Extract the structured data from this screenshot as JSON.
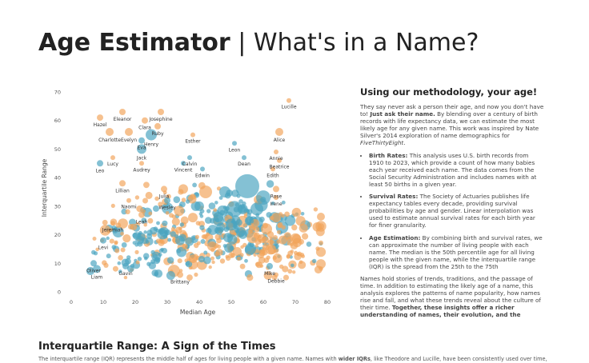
{
  "header": {
    "title_bold": "Age Estimator",
    "title_sep": "|",
    "title_light": "What's in a Name?"
  },
  "chart_data": {
    "type": "scatter",
    "title": "",
    "xlabel": "Median Age",
    "ylabel": "Interquartile Range",
    "xlim": [
      0,
      80
    ],
    "ylim": [
      0,
      70
    ],
    "xticks": [
      "0",
      "10",
      "20",
      "30",
      "40",
      "50",
      "60",
      "70",
      "80"
    ],
    "yticks": [
      "0",
      "10",
      "20",
      "30",
      "40",
      "50",
      "60",
      "70"
    ],
    "grid": false,
    "colors": {
      "female": "#f2a45a",
      "male": "#4aa3c0"
    },
    "labeled_points": [
      {
        "name": "Eleanor",
        "x": 16,
        "y": 63,
        "g": "f",
        "s": 4
      },
      {
        "name": "Josephine",
        "x": 28,
        "y": 63,
        "g": "f",
        "s": 4
      },
      {
        "name": "Lucille",
        "x": 68,
        "y": 67,
        "g": "f",
        "s": 3
      },
      {
        "name": "Hazel",
        "x": 9,
        "y": 61,
        "g": "f",
        "s": 4
      },
      {
        "name": "Clara",
        "x": 23,
        "y": 60,
        "g": "f",
        "s": 4
      },
      {
        "name": "Ruby",
        "x": 27,
        "y": 58,
        "g": "f",
        "s": 4
      },
      {
        "name": "Charlotte",
        "x": 12,
        "y": 56,
        "g": "f",
        "s": 5
      },
      {
        "name": "Evelyn",
        "x": 18,
        "y": 56,
        "g": "f",
        "s": 5
      },
      {
        "name": "Henry",
        "x": 25,
        "y": 55,
        "g": "m",
        "s": 7
      },
      {
        "name": "Alice",
        "x": 65,
        "y": 56,
        "g": "f",
        "s": 5
      },
      {
        "name": "Esther",
        "x": 38,
        "y": 55,
        "g": "f",
        "s": 3
      },
      {
        "name": "Eva",
        "x": 22,
        "y": 53,
        "g": "m",
        "s": 4
      },
      {
        "name": "Leon",
        "x": 51,
        "y": 52,
        "g": "m",
        "s": 3
      },
      {
        "name": "Annie",
        "x": 64,
        "y": 49,
        "g": "f",
        "s": 3
      },
      {
        "name": "Jack",
        "x": 22,
        "y": 50,
        "g": "m",
        "s": 6
      },
      {
        "name": "Beatrice",
        "x": 65,
        "y": 46,
        "g": "f",
        "s": 3
      },
      {
        "name": "Lucy",
        "x": 13,
        "y": 47,
        "g": "f",
        "s": 3
      },
      {
        "name": "Calvin",
        "x": 37,
        "y": 47,
        "g": "m",
        "s": 3
      },
      {
        "name": "Dean",
        "x": 54,
        "y": 47,
        "g": "m",
        "s": 3
      },
      {
        "name": "Leo",
        "x": 9,
        "y": 45,
        "g": "m",
        "s": 4
      },
      {
        "name": "Audrey",
        "x": 22,
        "y": 45,
        "g": "f",
        "s": 3
      },
      {
        "name": "Vincent",
        "x": 35,
        "y": 45,
        "g": "m",
        "s": 3
      },
      {
        "name": "Edwin",
        "x": 41,
        "y": 43,
        "g": "m",
        "s": 3
      },
      {
        "name": "Edith",
        "x": 63,
        "y": 43,
        "g": "f",
        "s": 3
      },
      {
        "name": "Lillian",
        "x": 16,
        "y": 38,
        "g": "f",
        "s": 4
      },
      {
        "name": "Julia",
        "x": 29,
        "y": 36,
        "g": "f",
        "s": 4
      },
      {
        "name": "Rose",
        "x": 64,
        "y": 36,
        "g": "f",
        "s": 4
      },
      {
        "name": "Irene",
        "x": 64,
        "y": 33,
        "g": "f",
        "s": 3
      },
      {
        "name": "Naomi",
        "x": 18,
        "y": 32,
        "g": "f",
        "s": 3
      },
      {
        "name": "Wesley",
        "x": 30,
        "y": 32,
        "g": "m",
        "s": 4
      },
      {
        "name": "Leah",
        "x": 22,
        "y": 27,
        "g": "f",
        "s": 4
      },
      {
        "name": "Jeremiah",
        "x": 13,
        "y": 24,
        "g": "f",
        "s": 3
      },
      {
        "name": "Levi",
        "x": 10,
        "y": 18,
        "g": "m",
        "s": 4
      },
      {
        "name": "Oliver",
        "x": 7,
        "y": 10,
        "g": "m",
        "s": 4
      },
      {
        "name": "Gavin",
        "x": 17,
        "y": 9,
        "g": "m",
        "s": 4
      },
      {
        "name": "Liam",
        "x": 8,
        "y": 8,
        "g": "m",
        "s": 5
      },
      {
        "name": "Brittany",
        "x": 34,
        "y": 6,
        "g": "f",
        "s": 4
      },
      {
        "name": "Mike",
        "x": 62,
        "y": 9,
        "g": "m",
        "s": 4
      },
      {
        "name": "Debbie",
        "x": 64,
        "y": 6,
        "g": "f",
        "s": 3
      }
    ]
  },
  "methodology": {
    "heading": "Using our methodology, your age!",
    "intro_a": "They say never ask a person their age, and now you don't have to!",
    "intro_bold": "Just ask their name.",
    "intro_b": "By blending over a century of birth records with life expectancy data, we can estimate the most likely age for any given name. This work was inspired by Nate Silver's 2014 exploration of name demographics for",
    "intro_italic": "FiveThirtyEight",
    "intro_end": ".",
    "bullets": [
      {
        "label": "Birth Rates:",
        "text": "This analysis uses U.S. birth records from 1910 to 2023, which provide a count of how many babies each year received each name. The data comes from the Social Security Administration and includes names with at least 50 births in a given year."
      },
      {
        "label": "Survival Rates:",
        "text": "The Society of Actuaries publishes life expectancy tables every decade, providing survival probabilities by age and gender. Linear interpolation was used to estimate annual survival rates for each birth year for finer granularity."
      },
      {
        "label": "Age Estimation:",
        "text": "By combining birth and survival rates, we can approximate the number of living people with each name. The median is the 50th percentile age for all living people with the given name, while the interquartile range (IQR) is the spread from the 25th to the 75th"
      }
    ],
    "closing_a": "Names hold stories of trends, traditions, and the passage of time. In addition to estimating the likely age of a name, this analysis explores the patterns of name popularity, how names rise and fall, and what these trends reveal about the culture of their time.",
    "closing_bold": "Together, these insights offer a richer understanding of names, their evolution, and the generations they represent."
  },
  "iqr_section": {
    "heading": "Interquartile Range: A Sign of the Times",
    "text_a": "The interquartile range (IQR) represents the middle half of ages for living people with a given name. Names with",
    "text_bold": "wider IQRs",
    "text_b": ", like Theodore and Lucille, have been consistently used over time,"
  }
}
